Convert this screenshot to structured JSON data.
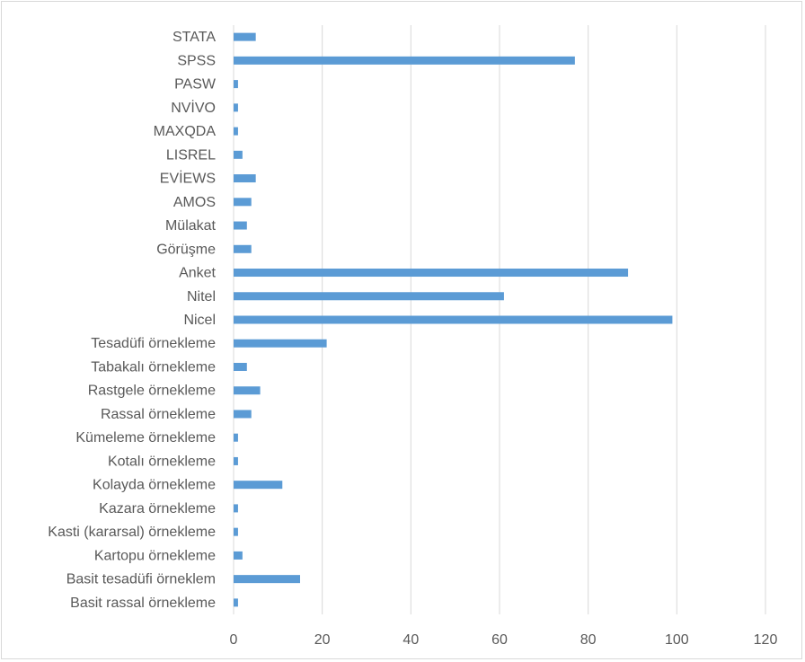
{
  "chart_data": {
    "type": "bar",
    "orientation": "horizontal",
    "categories": [
      "STATA",
      "SPSS",
      "PASW",
      "NVİVO",
      "MAXQDA",
      "LISREL",
      "EVİEWS",
      "AMOS",
      "Mülakat",
      "Görüşme",
      "Anket",
      "Nitel",
      "Nicel",
      "Tesadüfi örnekleme",
      "Tabakalı örnekleme",
      "Rastgele örnekleme",
      "Rassal örnekleme",
      "Kümeleme örnekleme",
      "Kotalı örnekleme",
      "Kolayda örnekleme",
      "Kazara örnekleme",
      "Kasti (kararsal) örnekleme",
      "Kartopu örnekleme",
      "Basit tesadüfi örneklem",
      "Basit rassal örnekleme"
    ],
    "values": [
      5,
      77,
      1,
      1,
      1,
      2,
      5,
      4,
      3,
      4,
      89,
      61,
      99,
      21,
      3,
      6,
      4,
      1,
      1,
      11,
      1,
      1,
      2,
      15,
      1
    ],
    "xlim": [
      0,
      120
    ],
    "xticks": [
      0,
      20,
      40,
      60,
      80,
      100,
      120
    ],
    "grid": "vertical",
    "bar_color": "#5b9bd5",
    "grid_color": "#d9d9d9",
    "title": "",
    "xlabel": "",
    "ylabel": ""
  }
}
